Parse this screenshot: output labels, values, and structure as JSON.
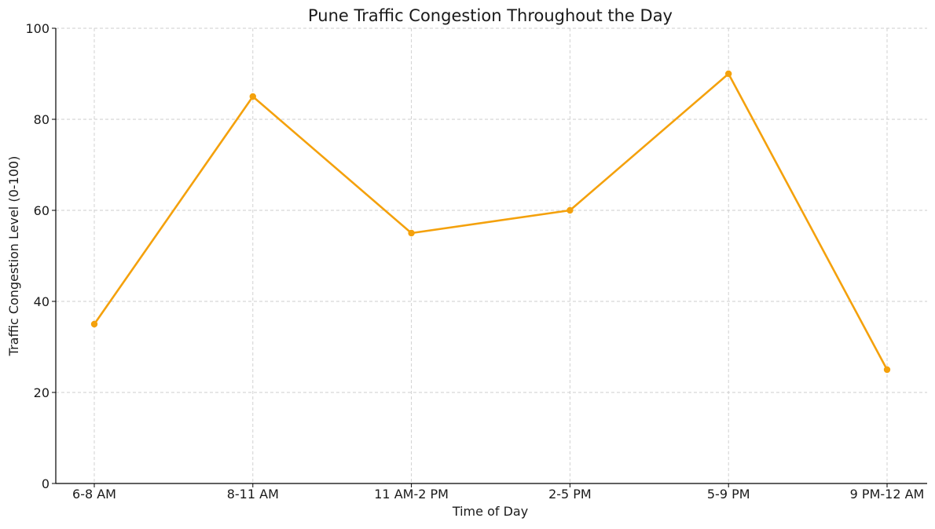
{
  "chart_data": {
    "type": "line",
    "title": "Pune Traffic Congestion Throughout the Day",
    "xlabel": "Time of Day",
    "ylabel": "Traffic Congestion Level (0-100)",
    "categories": [
      "6-8 AM",
      "8-11 AM",
      "11 AM-2 PM",
      "2-5 PM",
      "5-9 PM",
      "9 PM-12 AM"
    ],
    "series": [
      {
        "values": [
          35,
          85,
          55,
          60,
          90,
          25
        ],
        "color": "#f4a10c",
        "marker": "circle"
      }
    ],
    "ylim": [
      0,
      100
    ],
    "yticks": [
      0,
      20,
      40,
      60,
      80,
      100
    ],
    "grid": true,
    "legend": "none"
  }
}
